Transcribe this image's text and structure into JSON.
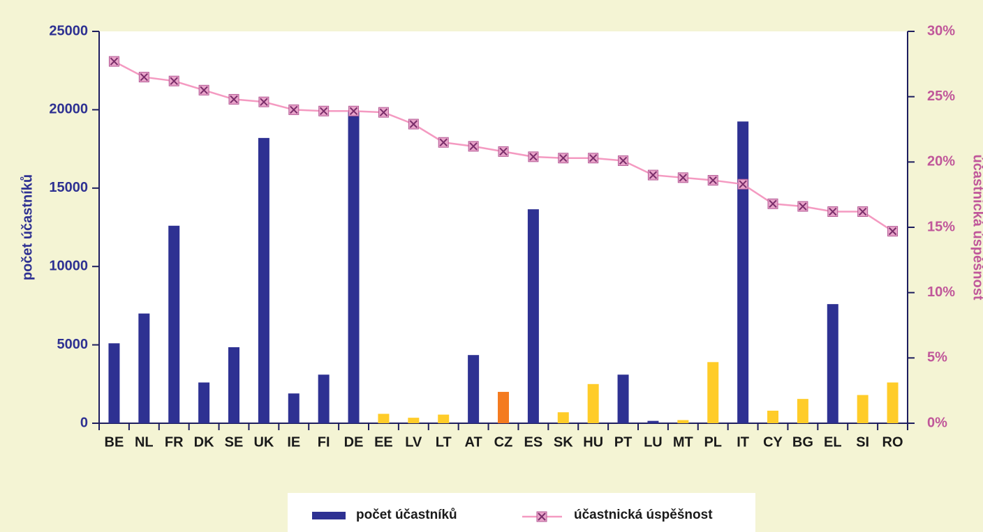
{
  "chart_data": {
    "type": "bar-line",
    "categories": [
      "BE",
      "NL",
      "FR",
      "DK",
      "SE",
      "UK",
      "IE",
      "FI",
      "DE",
      "EE",
      "LV",
      "LT",
      "AT",
      "CZ",
      "ES",
      "SK",
      "HU",
      "PT",
      "LU",
      "MT",
      "PL",
      "IT",
      "CY",
      "BG",
      "EL",
      "SI",
      "RO"
    ],
    "series": [
      {
        "name": "počet účastníků",
        "type": "bar",
        "color": "#2e3192",
        "colors": [
          "#2e3192",
          "#2e3192",
          "#2e3192",
          "#2e3192",
          "#2e3192",
          "#2e3192",
          "#2e3192",
          "#2e3192",
          "#2e3192",
          "#ffcc29",
          "#ffcc29",
          "#ffcc29",
          "#2e3192",
          "#f47b20",
          "#2e3192",
          "#ffcc29",
          "#ffcc29",
          "#2e3192",
          "#2e3192",
          "#ffcc29",
          "#ffcc29",
          "#2e3192",
          "#ffcc29",
          "#ffcc29",
          "#2e3192",
          "#ffcc29",
          "#ffcc29"
        ],
        "values": [
          5100,
          7000,
          12600,
          2600,
          4850,
          18200,
          1900,
          3100,
          19900,
          600,
          350,
          550,
          4350,
          2000,
          13650,
          700,
          2500,
          3100,
          150,
          200,
          3900,
          19250,
          800,
          1550,
          7600,
          1800,
          2600
        ]
      },
      {
        "name": "účastnická úspěšnost",
        "type": "line",
        "axis": "y2",
        "color": "#f49ac1",
        "values": [
          27.7,
          26.5,
          26.2,
          25.5,
          24.8,
          24.6,
          24.0,
          23.9,
          23.9,
          23.8,
          22.9,
          21.5,
          21.2,
          20.8,
          20.4,
          20.3,
          20.3,
          20.1,
          19.0,
          18.8,
          18.6,
          18.3,
          16.8,
          16.6,
          16.2,
          16.2,
          14.7
        ]
      }
    ],
    "ylabel": "počet účastníků",
    "y2label": "účastnická úspěšnost",
    "ylim": [
      0,
      25000
    ],
    "yticks": [
      0,
      5000,
      10000,
      15000,
      20000,
      25000
    ],
    "y2lim": [
      0,
      30
    ],
    "y2ticks": [
      {
        "value": 0,
        "label": "0%"
      },
      {
        "value": 5,
        "label": "5%"
      },
      {
        "value": 10,
        "label": "10%"
      },
      {
        "value": 15,
        "label": "15%"
      },
      {
        "value": 20,
        "label": "20%"
      },
      {
        "value": 25,
        "label": "25%"
      },
      {
        "value": 30,
        "label": "30%"
      }
    ],
    "legend": "bottom"
  }
}
